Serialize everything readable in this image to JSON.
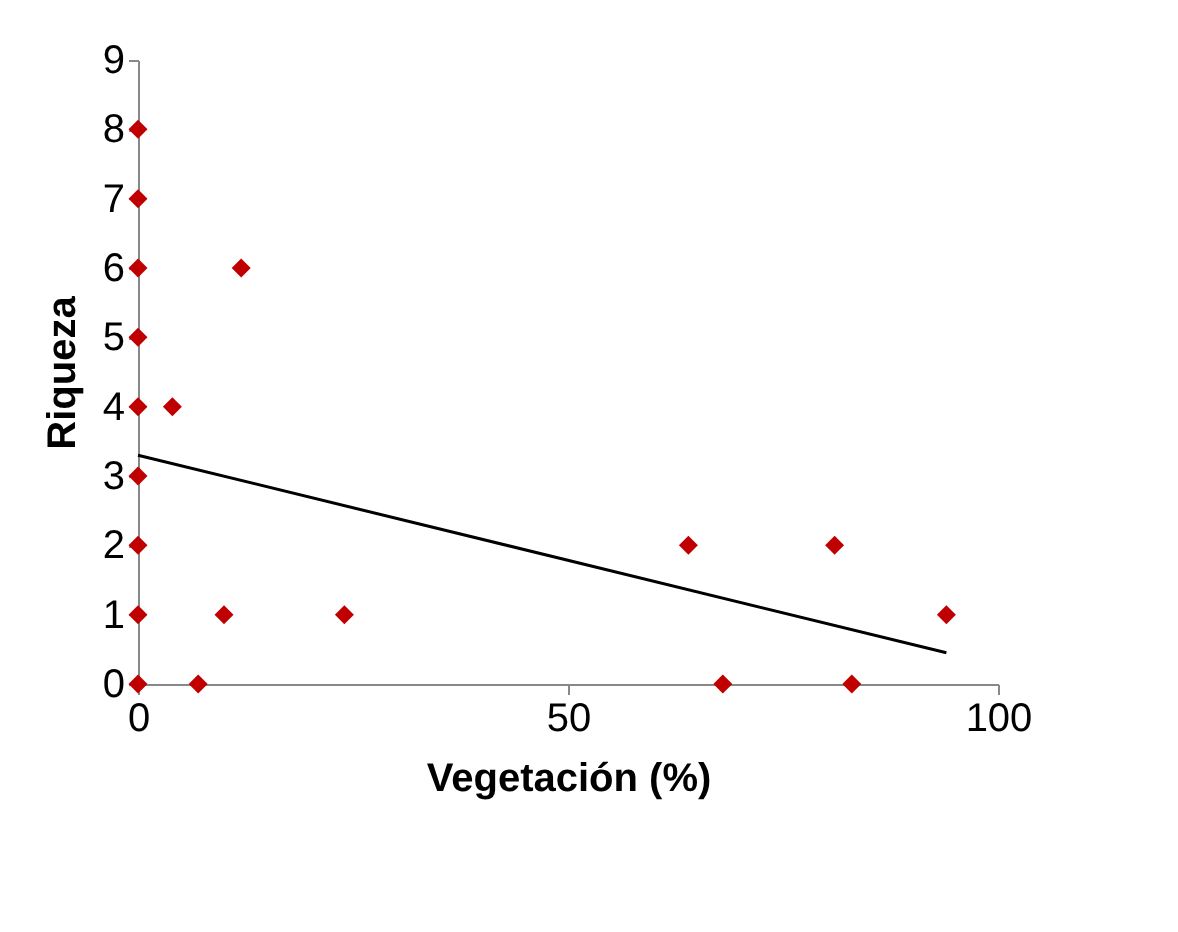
{
  "chart_data": {
    "type": "scatter",
    "xlabel": "Vegetación (%)",
    "ylabel": "Riqueza",
    "xlim": [
      0,
      100
    ],
    "xticks": [
      0,
      50,
      100
    ],
    "ylim": [
      0,
      9
    ],
    "yticks": [
      0,
      1,
      2,
      3,
      4,
      5,
      6,
      7,
      8,
      9
    ],
    "grid": false,
    "series": [
      {
        "color": "#c00000",
        "marker": "diamond",
        "x": [
          0,
          0,
          0,
          0,
          0,
          0,
          0,
          0,
          0,
          4,
          12,
          7,
          10,
          24,
          64,
          68,
          81,
          83,
          94
        ],
        "values": [
          0,
          1,
          2,
          3,
          4,
          5,
          6,
          7,
          8,
          4,
          6,
          0,
          1,
          1,
          2,
          0,
          2,
          0,
          1
        ]
      },
      {
        "type": "line",
        "color": "#000000",
        "marker": "none",
        "line_style": "solid",
        "x": [
          0,
          94
        ],
        "values": [
          3.3,
          0.45
        ]
      }
    ]
  }
}
